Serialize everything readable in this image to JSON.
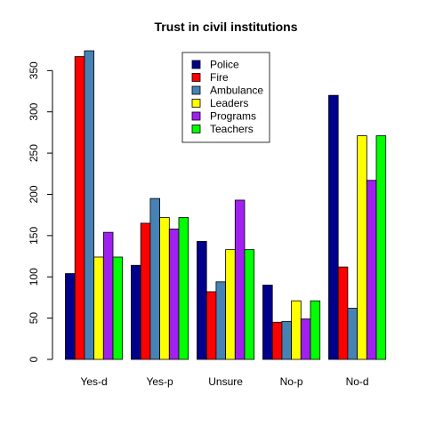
{
  "chart_data": {
    "type": "bar",
    "title": "Trust in civil institutions",
    "xlabel": "",
    "ylabel": "",
    "categories": [
      "Yes-d",
      "Yes-p",
      "Unsure",
      "No-p",
      "No-d"
    ],
    "series": [
      {
        "name": "Police",
        "color": "#00008b",
        "values": [
          104,
          114,
          143,
          90,
          320
        ]
      },
      {
        "name": "Fire",
        "color": "#ff0000",
        "values": [
          367,
          165,
          82,
          45,
          112
        ]
      },
      {
        "name": "Ambulance",
        "color": "#4682b4",
        "values": [
          374,
          195,
          94,
          46,
          62
        ]
      },
      {
        "name": "Leaders",
        "color": "#ffff00",
        "values": [
          124,
          172,
          133,
          71,
          271
        ]
      },
      {
        "name": "Programs",
        "color": "#a020f0",
        "values": [
          154,
          158,
          193,
          49,
          217
        ]
      },
      {
        "name": "Teachers",
        "color": "#00ff00",
        "values": [
          124,
          172,
          133,
          71,
          271
        ]
      }
    ],
    "yticks": [
      0,
      50,
      100,
      150,
      200,
      250,
      300,
      350
    ],
    "ylim": [
      0,
      374
    ],
    "grid": false,
    "legend_position": "top-center"
  }
}
